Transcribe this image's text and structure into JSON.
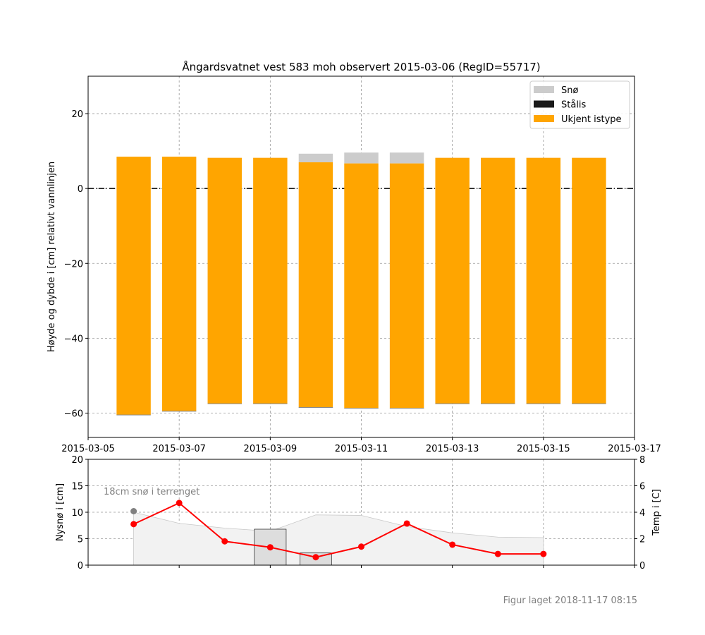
{
  "footer": "Figur laget 2018-11-17 08:15",
  "chart_data": [
    {
      "type": "bar",
      "title": "Ångardsvatnet vest 583 moh observert 2015-03-06 (RegID=55717)",
      "ylabel": "Høyde og dybde i [cm] relativt vannlinjen",
      "xlim": [
        "2015-03-05",
        "2015-03-17"
      ],
      "ylim": [
        -66.5,
        30
      ],
      "x_ticks": [
        "2015-03-05",
        "2015-03-07",
        "2015-03-09",
        "2015-03-11",
        "2015-03-13",
        "2015-03-15",
        "2015-03-17"
      ],
      "y_ticks": [
        -60,
        -40,
        -20,
        0,
        20
      ],
      "grid": true,
      "legend": {
        "location": "top-right",
        "entries": [
          {
            "label": "Snø",
            "color": "#cccccc"
          },
          {
            "label": "Stålis",
            "color": "#1a1a1a"
          },
          {
            "label": "Ukjent istype",
            "color": "#ffa500"
          }
        ]
      },
      "colors": {
        "snow": "#cccccc",
        "black_ice": "#1a1a1a",
        "unknown_ice": "#ffa500",
        "waterline": "#000000"
      },
      "dates": [
        "2015-03-06",
        "2015-03-07",
        "2015-03-08",
        "2015-03-09",
        "2015-03-10",
        "2015-03-11",
        "2015-03-12",
        "2015-03-13",
        "2015-03-14",
        "2015-03-15",
        "2015-03-16"
      ],
      "ice_top": [
        8.5,
        8.5,
        8.2,
        8.2,
        7.0,
        6.7,
        6.7,
        8.2,
        8.2,
        8.2,
        8.2
      ],
      "ice_bottom": [
        -60.5,
        -59.5,
        -57.5,
        -57.5,
        -58.5,
        -58.7,
        -58.7,
        -57.5,
        -57.5,
        -57.5,
        -57.5
      ],
      "snow_top": [
        8.5,
        8.5,
        8.2,
        8.2,
        9.3,
        9.6,
        9.6,
        8.2,
        8.2,
        8.2,
        8.2
      ],
      "waterline": 0
    },
    {
      "type": "line",
      "ylabel_left": "Nysnø i [cm]",
      "ylabel_right": "Temp i [C]",
      "annotation": "18cm snø i terrenget",
      "ylim_left": [
        0,
        20
      ],
      "ylim_right": [
        0,
        8
      ],
      "y_ticks_left": [
        0,
        5,
        10,
        15,
        20
      ],
      "y_ticks_right": [
        0,
        2,
        4,
        6,
        8
      ],
      "colors": {
        "temp_line": "#ff0000",
        "newsnow_bar": "#dddddd",
        "snowdepth_area": "#f2f2f2",
        "snowdepth_point": "#808080"
      },
      "temperature": {
        "dates": [
          "2015-03-06",
          "2015-03-07",
          "2015-03-08",
          "2015-03-09",
          "2015-03-10",
          "2015-03-11",
          "2015-03-12",
          "2015-03-13",
          "2015-03-14",
          "2015-03-15"
        ],
        "values": [
          3.1,
          4.7,
          1.8,
          1.35,
          0.6,
          1.4,
          3.15,
          1.55,
          0.85,
          0.85
        ]
      },
      "new_snow": {
        "dates": [
          "2015-03-09",
          "2015-03-10"
        ],
        "values": [
          6.8,
          2.3
        ]
      },
      "snow_depth": {
        "dates": [
          "2015-03-06",
          "2015-03-07",
          "2015-03-08",
          "2015-03-09",
          "2015-03-10",
          "2015-03-11",
          "2015-03-12",
          "2015-03-13",
          "2015-03-14",
          "2015-03-15"
        ],
        "values": [
          10,
          7.9,
          7.0,
          6.4,
          9.5,
          9.4,
          7.3,
          6.1,
          5.3,
          5.2
        ]
      },
      "snow_depth_observed": {
        "date": "2015-03-06",
        "value": 10.2
      }
    }
  ]
}
